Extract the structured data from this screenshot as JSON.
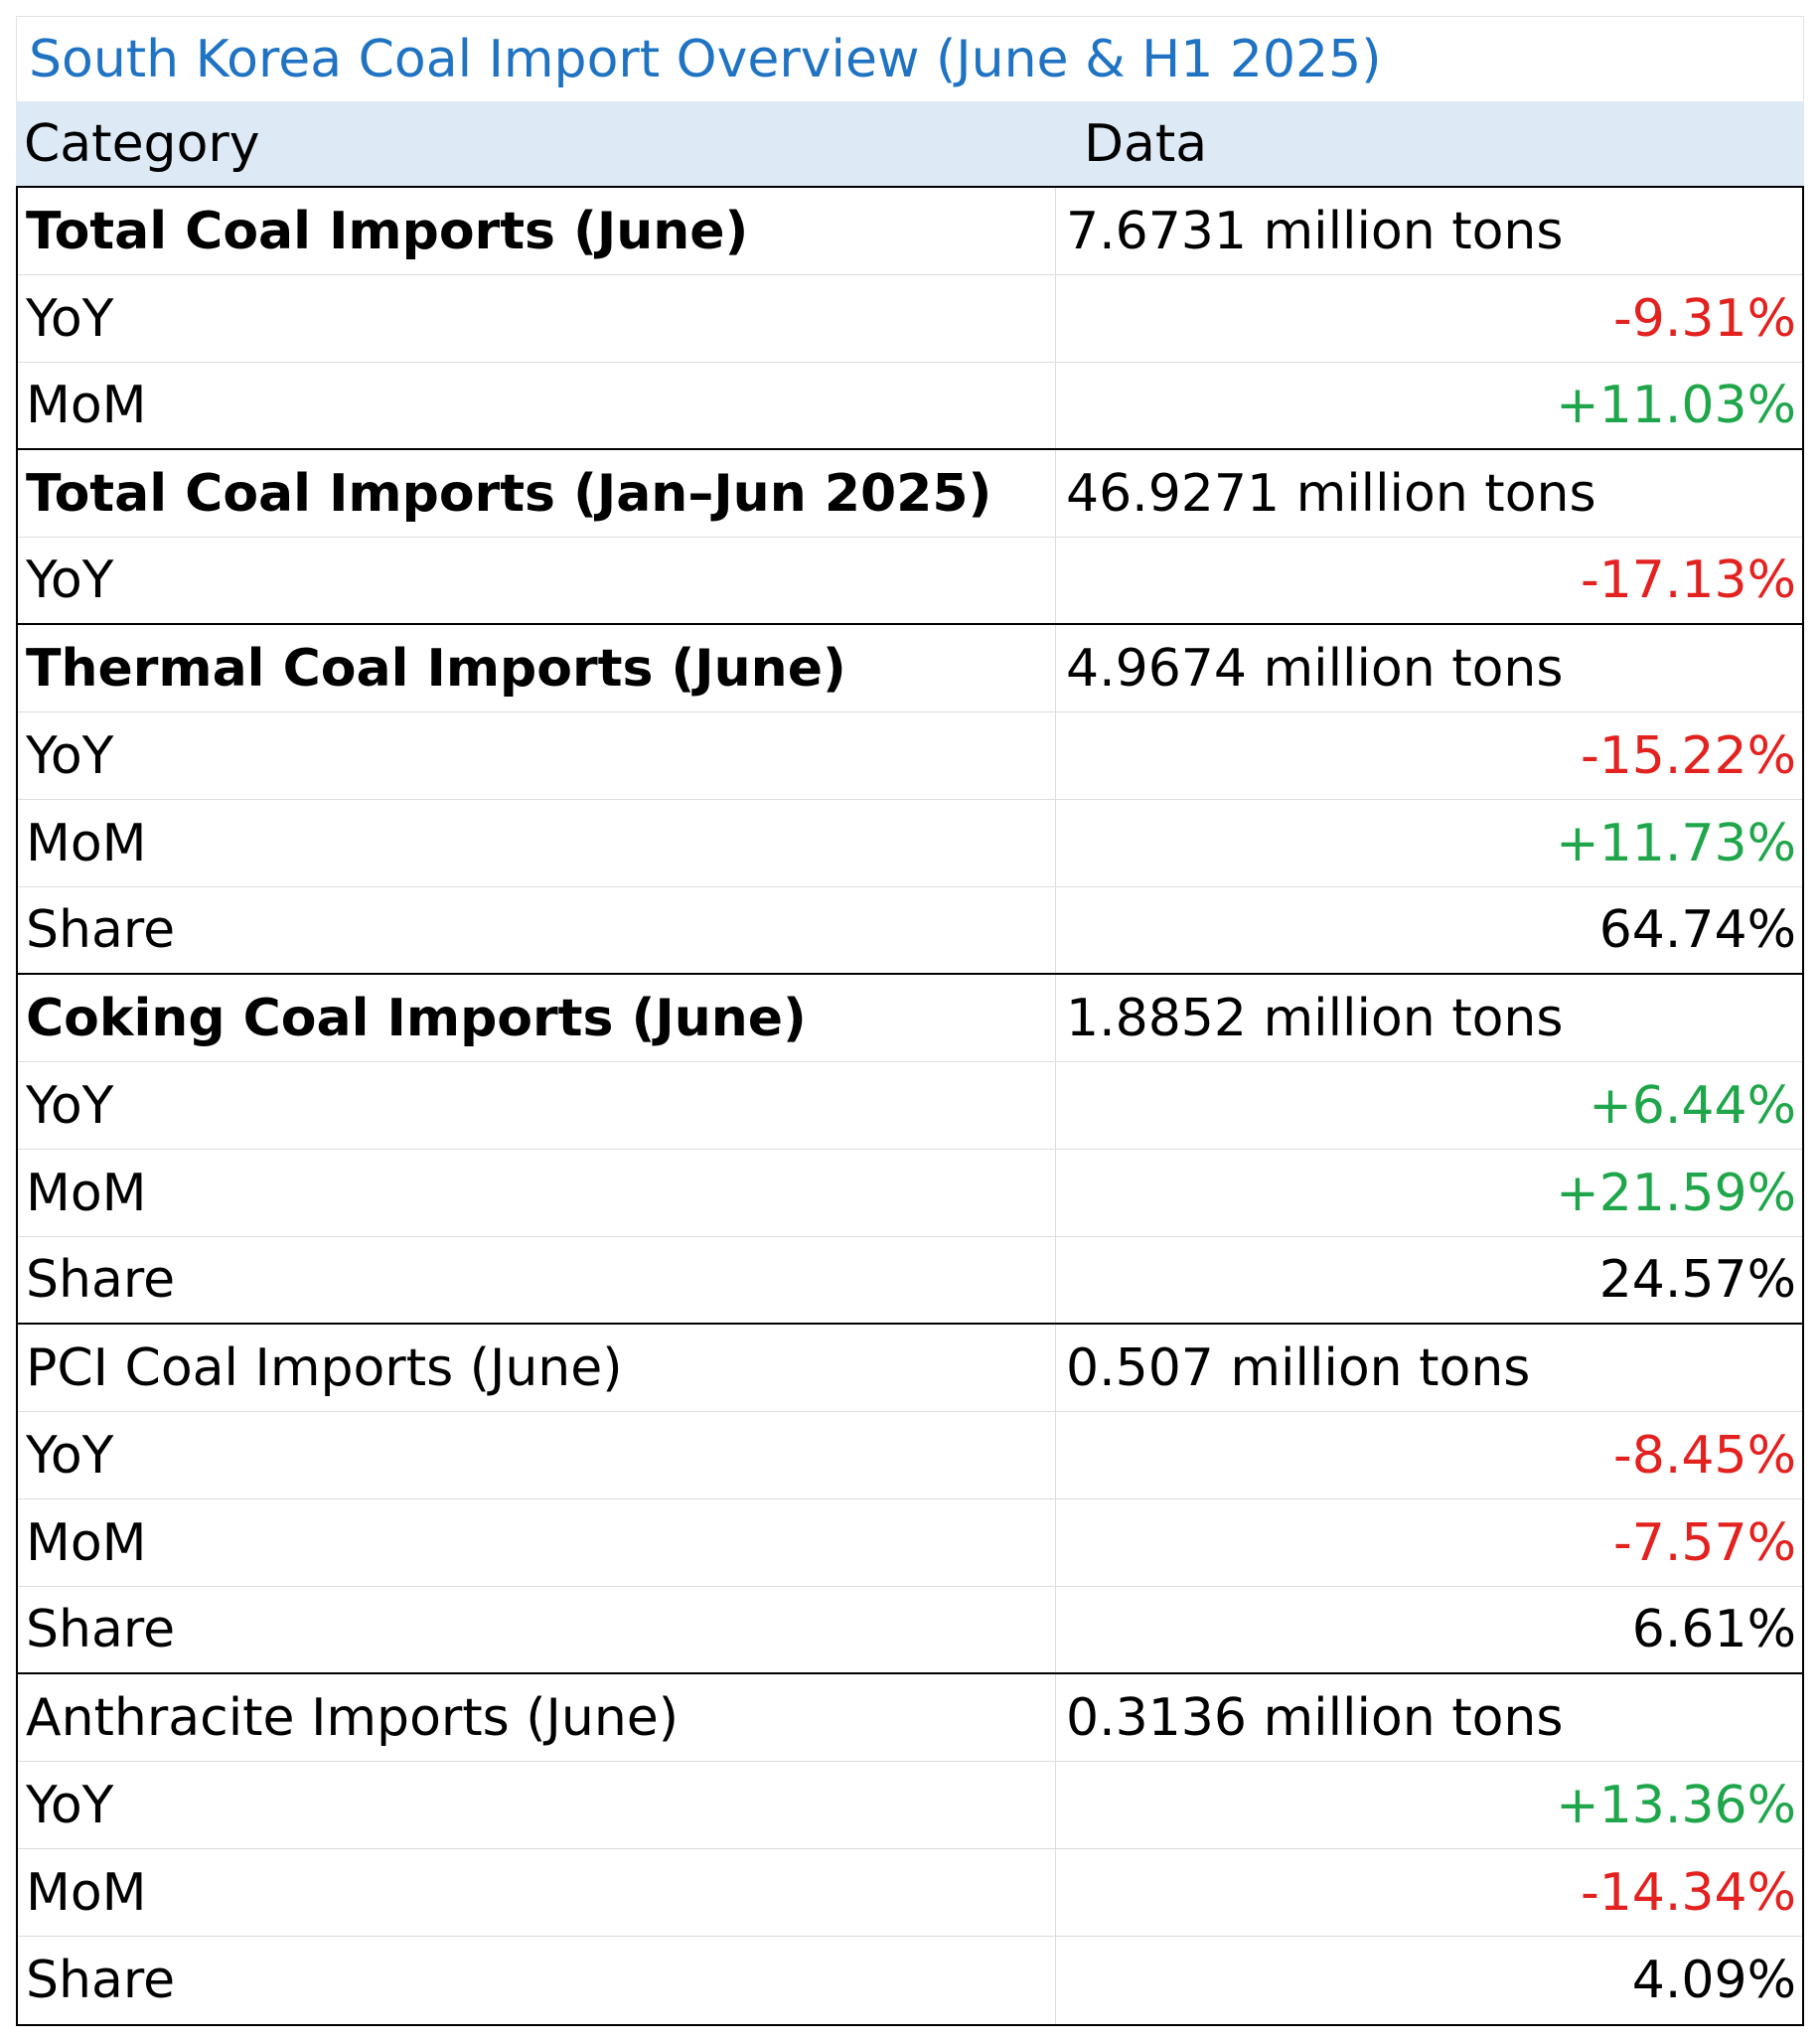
{
  "title": "South Korea Coal Import Overview (June & H1 2025)",
  "colors": {
    "title": "#1f73c2",
    "header_bg": "#dde9f5",
    "negative": "#e3211f",
    "positive": "#1fa64a"
  },
  "headers": {
    "category": "Category",
    "data": "Data"
  },
  "rows": [
    {
      "category": "Total Coal Imports (June)",
      "value": "7.6731 million tons",
      "kind": "main",
      "bold": true,
      "group_end": false
    },
    {
      "category": "YoY",
      "value": "-9.31%",
      "kind": "neg",
      "bold": false,
      "group_end": false
    },
    {
      "category": "MoM",
      "value": "+11.03%",
      "kind": "pos",
      "bold": false,
      "group_end": true
    },
    {
      "category": "Total Coal Imports (Jan–Jun 2025)",
      "value": "46.9271 million tons",
      "kind": "main",
      "bold": true,
      "group_end": false
    },
    {
      "category": "YoY",
      "value": "-17.13%",
      "kind": "neg",
      "bold": false,
      "group_end": true
    },
    {
      "category": "Thermal Coal Imports (June)",
      "value": "4.9674 million tons",
      "kind": "main",
      "bold": true,
      "group_end": false
    },
    {
      "category": "YoY",
      "value": "-15.22%",
      "kind": "neg",
      "bold": false,
      "group_end": false
    },
    {
      "category": "MoM",
      "value": "+11.73%",
      "kind": "pos",
      "bold": false,
      "group_end": false
    },
    {
      "category": "Share",
      "value": "64.74%",
      "kind": "neutral",
      "bold": false,
      "group_end": true
    },
    {
      "category": "Coking Coal Imports (June)",
      "value": "1.8852 million tons",
      "kind": "main",
      "bold": true,
      "group_end": false
    },
    {
      "category": "YoY",
      "value": "+6.44%",
      "kind": "pos",
      "bold": false,
      "group_end": false
    },
    {
      "category": "MoM",
      "value": "+21.59%",
      "kind": "pos",
      "bold": false,
      "group_end": false
    },
    {
      "category": "Share",
      "value": "24.57%",
      "kind": "neutral",
      "bold": false,
      "group_end": true
    },
    {
      "category": "PCI Coal Imports (June)",
      "value": "0.507 million tons",
      "kind": "main",
      "bold": false,
      "group_end": false
    },
    {
      "category": "YoY",
      "value": "-8.45%",
      "kind": "neg",
      "bold": false,
      "group_end": false
    },
    {
      "category": "MoM",
      "value": "-7.57%",
      "kind": "neg",
      "bold": false,
      "group_end": false
    },
    {
      "category": "Share",
      "value": "6.61%",
      "kind": "neutral",
      "bold": false,
      "group_end": true
    },
    {
      "category": "Anthracite Imports (June)",
      "value": "0.3136 million tons",
      "kind": "main",
      "bold": false,
      "group_end": false
    },
    {
      "category": "YoY",
      "value": "+13.36%",
      "kind": "pos",
      "bold": false,
      "group_end": false
    },
    {
      "category": "MoM",
      "value": "-14.34%",
      "kind": "neg",
      "bold": false,
      "group_end": false
    },
    {
      "category": "Share",
      "value": "4.09%",
      "kind": "neutral",
      "bold": false,
      "group_end": false
    }
  ]
}
